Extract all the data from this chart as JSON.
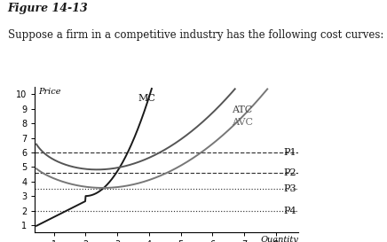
{
  "title_bold": "Figure 14-13",
  "subtitle": "Suppose a firm in a competitive industry has the following cost curves:",
  "xlabel": "Quantity",
  "ylabel": "Price",
  "xlim": [
    0.4,
    8.7
  ],
  "ylim": [
    0.5,
    10.5
  ],
  "xticks": [
    1,
    2,
    3,
    4,
    5,
    6,
    7,
    8
  ],
  "yticks": [
    1,
    2,
    3,
    4,
    5,
    6,
    7,
    8,
    9,
    10
  ],
  "price_lines": [
    {
      "y": 6.0,
      "label": "P1",
      "dash": [
        5,
        3
      ]
    },
    {
      "y": 4.6,
      "label": "P2",
      "dash": [
        4,
        3
      ]
    },
    {
      "y": 3.5,
      "label": "P3",
      "dash": [
        3,
        3
      ]
    },
    {
      "y": 2.0,
      "label": "P4",
      "dash": [
        3,
        3
      ]
    }
  ],
  "MC_color": "#1a1a1a",
  "ATC_color": "#555555",
  "AVC_color": "#777777",
  "background_color": "#ffffff",
  "fig_title_fontsize": 9,
  "subtitle_fontsize": 8.5,
  "axis_label_fontsize": 7,
  "curve_label_fontsize": 8,
  "price_label_fontsize": 8,
  "tick_fontsize": 7
}
